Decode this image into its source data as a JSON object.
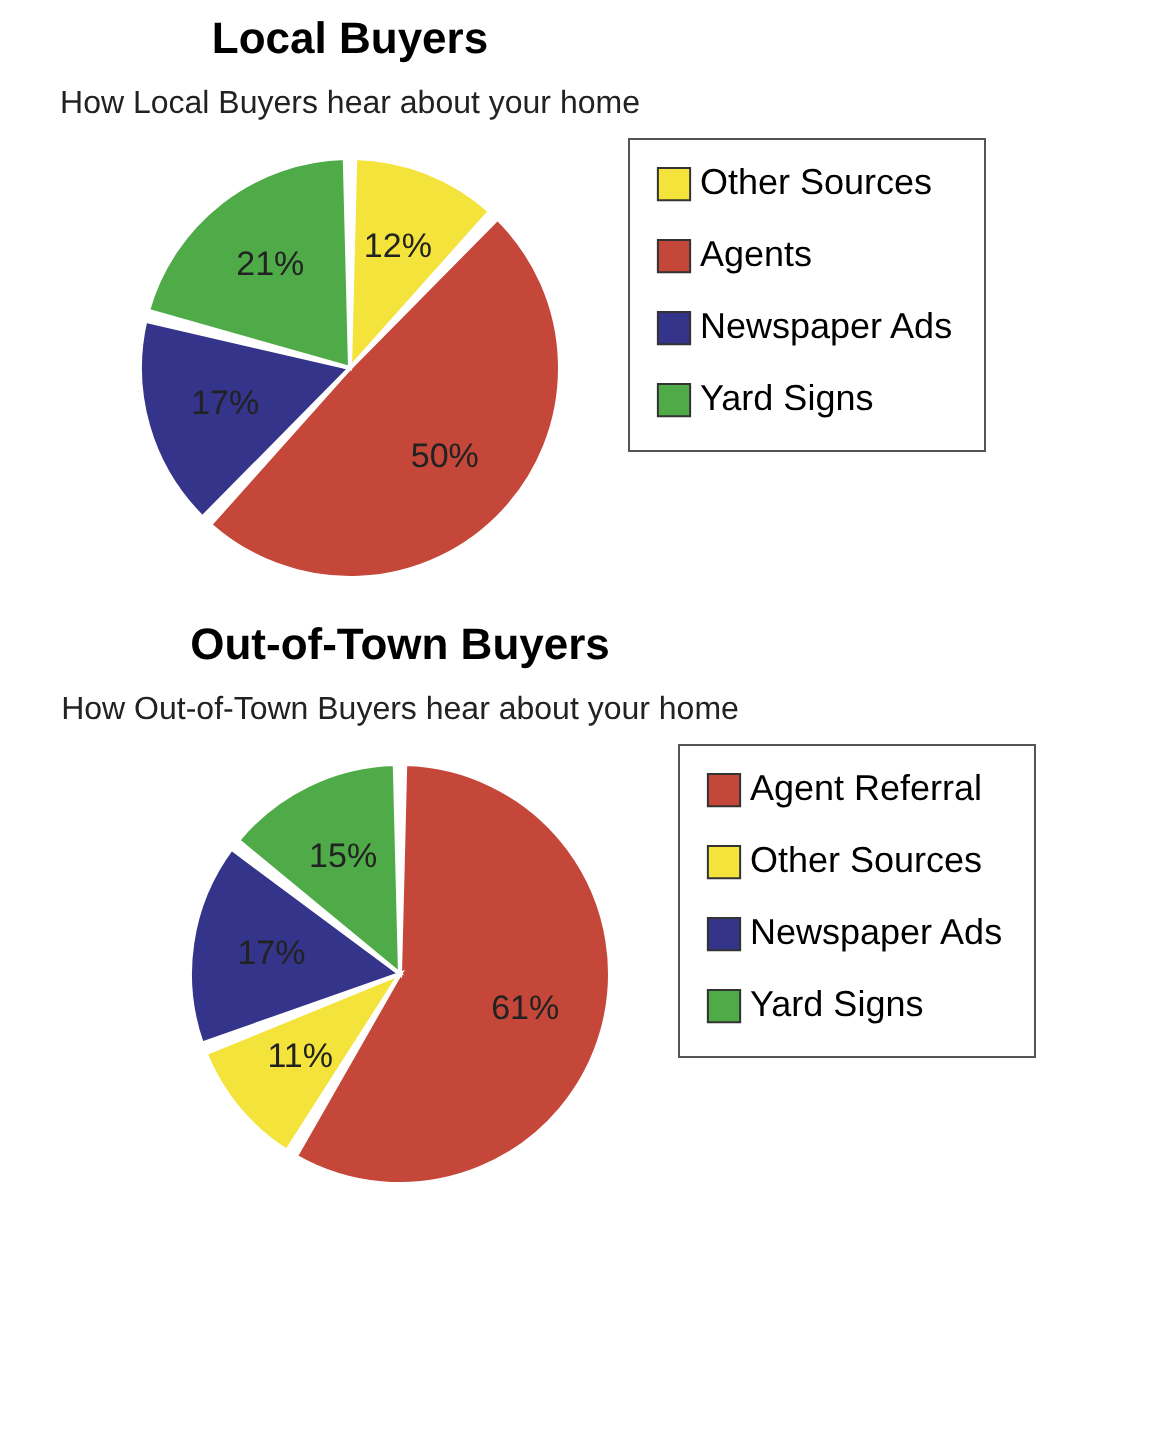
{
  "chart_data": [
    {
      "type": "pie",
      "title": "Local Buyers",
      "subtitle": "How Local Buyers hear about your home",
      "categories": [
        "Other Sources",
        "Agents",
        "Newspaper Ads",
        "Yard Signs"
      ],
      "values": [
        12,
        50,
        17,
        21
      ],
      "colors": [
        "#f3e33b",
        "#c4473a",
        "#34348a",
        "#4fab48"
      ],
      "value_labels": [
        "12%",
        "50%",
        "17%",
        "21%"
      ],
      "legend": "right"
    },
    {
      "type": "pie",
      "title": "Out-of-Town Buyers",
      "subtitle": "How Out-of-Town Buyers hear about your home",
      "categories": [
        "Agent Referral",
        "Other Sources",
        "Newspaper Ads",
        "Yard Signs"
      ],
      "values": [
        61,
        11,
        17,
        15
      ],
      "colors": [
        "#c4473a",
        "#f3e33b",
        "#34348a",
        "#4fab48"
      ],
      "value_labels": [
        "61%",
        "11%",
        "17%",
        "15%"
      ],
      "legend": "right"
    }
  ]
}
